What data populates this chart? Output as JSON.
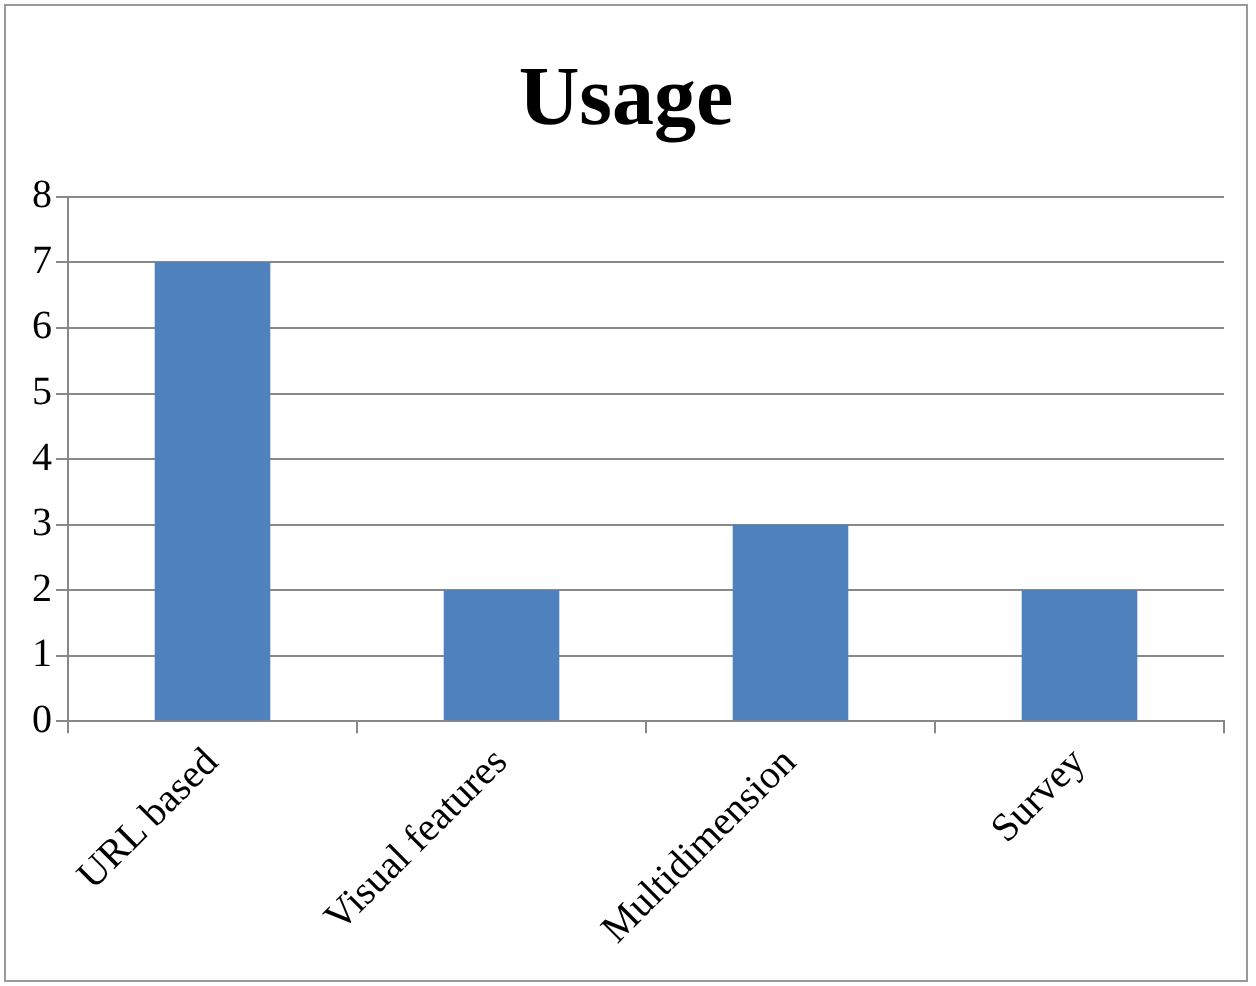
{
  "chart_data": {
    "type": "bar",
    "title": "Usage",
    "categories": [
      "URL based",
      "Visual features",
      "Multidimension",
      "Survey"
    ],
    "values": [
      7,
      2,
      3,
      2
    ],
    "color": "#4f81bd",
    "ylim": [
      0,
      8
    ],
    "yticks": [
      0,
      1,
      2,
      3,
      4,
      5,
      6,
      7,
      8
    ],
    "grid": "y"
  }
}
